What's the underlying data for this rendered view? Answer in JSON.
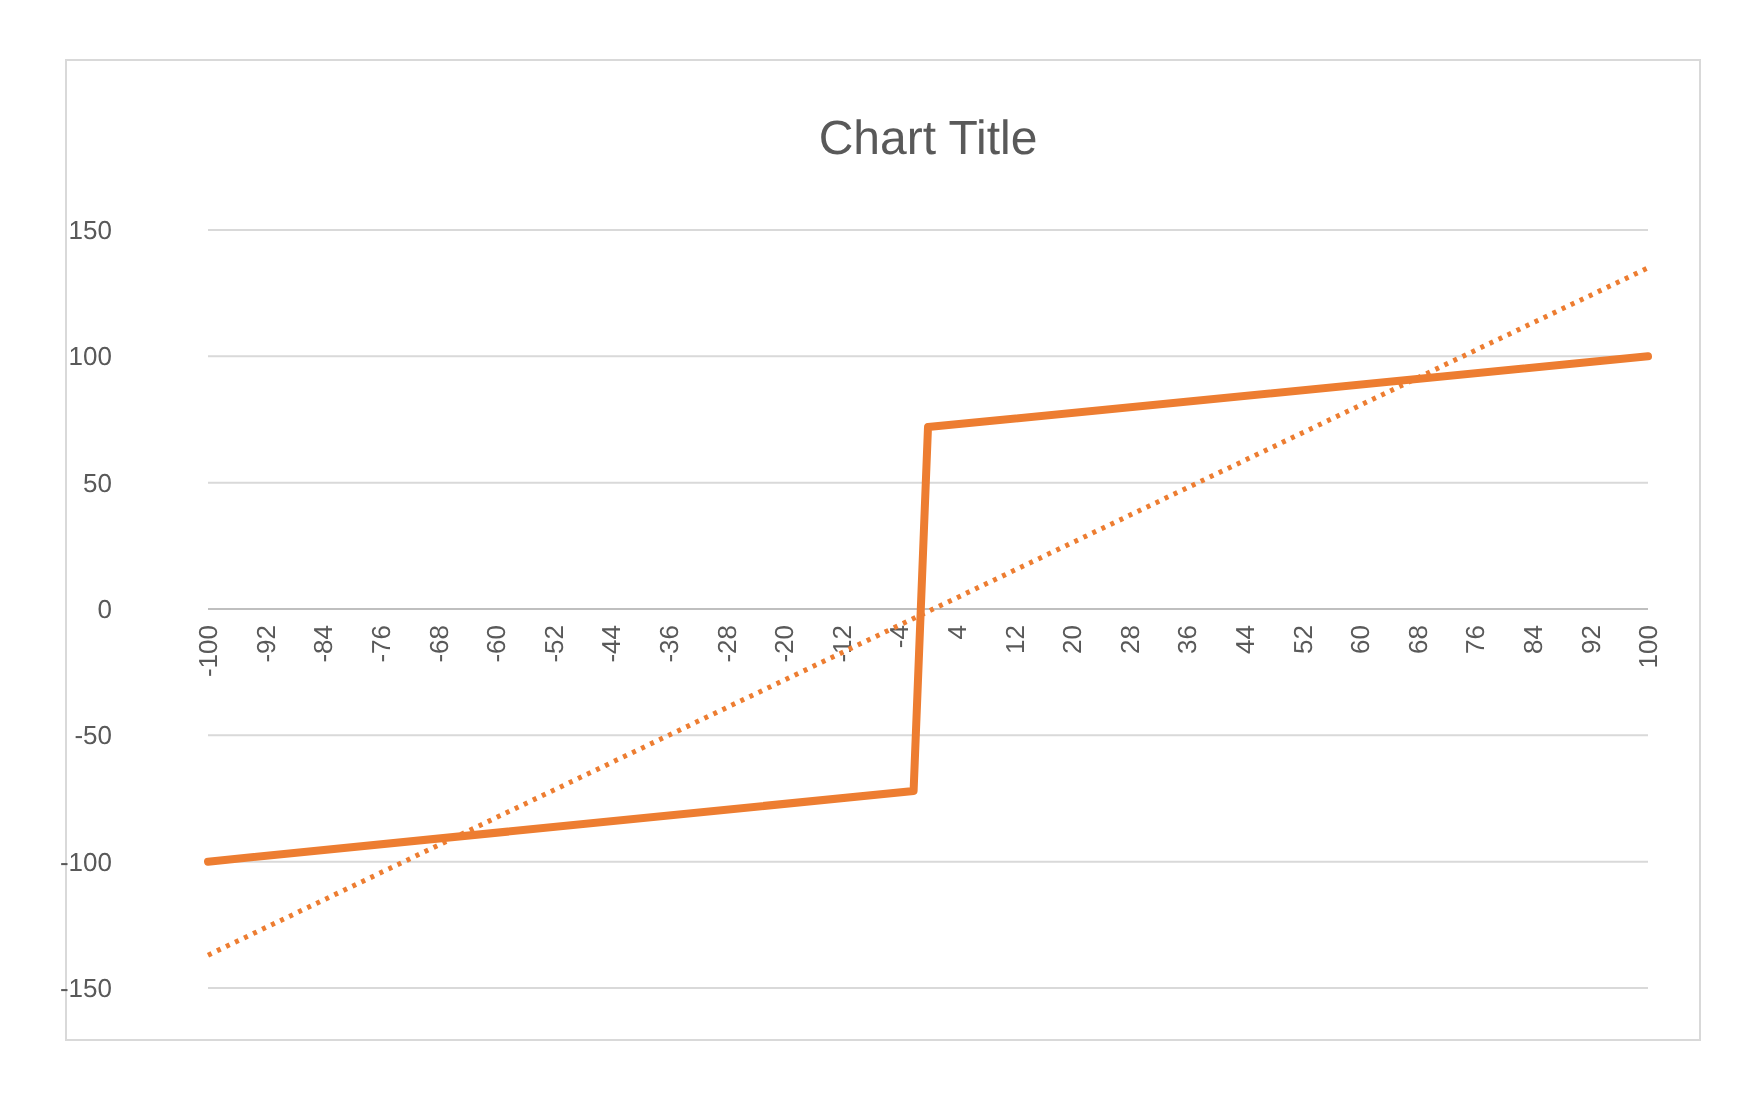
{
  "chart_data": {
    "type": "line",
    "title": "Chart Title",
    "xlim": [
      -100,
      100
    ],
    "xticks": [
      -100,
      -92,
      -84,
      -76,
      -68,
      -60,
      -52,
      -44,
      -36,
      -28,
      -20,
      -12,
      -4,
      4,
      12,
      20,
      28,
      36,
      44,
      52,
      60,
      68,
      76,
      84,
      92,
      100
    ],
    "ylim": [
      -150,
      150
    ],
    "yticks": [
      -150,
      -100,
      -50,
      0,
      50,
      100,
      150
    ],
    "grid": "y",
    "series": [
      {
        "color": "#ed7d31",
        "x": [
          -100,
          -2,
          0,
          100
        ],
        "values": [
          -100,
          -72,
          72,
          100
        ],
        "line_style": "solid"
      },
      {
        "color": "#ed7d31",
        "x": [
          -100,
          100
        ],
        "values": [
          -137,
          135
        ],
        "line_style": "dotted"
      }
    ]
  }
}
